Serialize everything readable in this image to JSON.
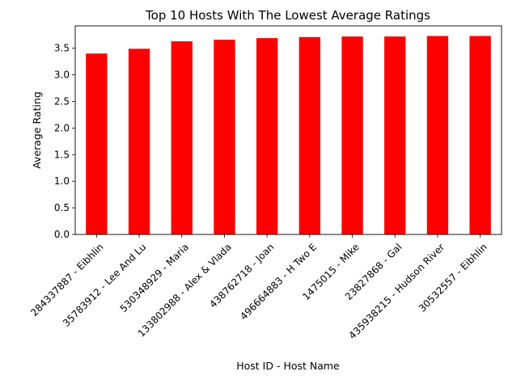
{
  "chart_data": {
    "type": "bar",
    "title": "Top 10 Hosts With The Lowest Average Ratings",
    "xlabel": "Host ID - Host Name",
    "ylabel": "Average Rating",
    "categories": [
      "284337887 - Eibhlin",
      "35783912 - Lee And Lu",
      "530348929 - Maria",
      "133802988 - Alex & Vlada",
      "438762718 - Joan",
      "496664883 - H Two E",
      "1475015 - Mike",
      "23827868 - Gal",
      "435938215 - Hudson River",
      "30532557 - Eibhlin"
    ],
    "values": [
      3.4,
      3.49,
      3.63,
      3.66,
      3.69,
      3.71,
      3.72,
      3.72,
      3.73,
      3.73
    ],
    "ylim": [
      0,
      3.92
    ],
    "yticks": [
      "0.0",
      "0.5",
      "1.0",
      "1.5",
      "2.0",
      "2.5",
      "3.0",
      "3.5"
    ],
    "grid": false,
    "legend": "none",
    "bar_color": "#ff0000"
  }
}
